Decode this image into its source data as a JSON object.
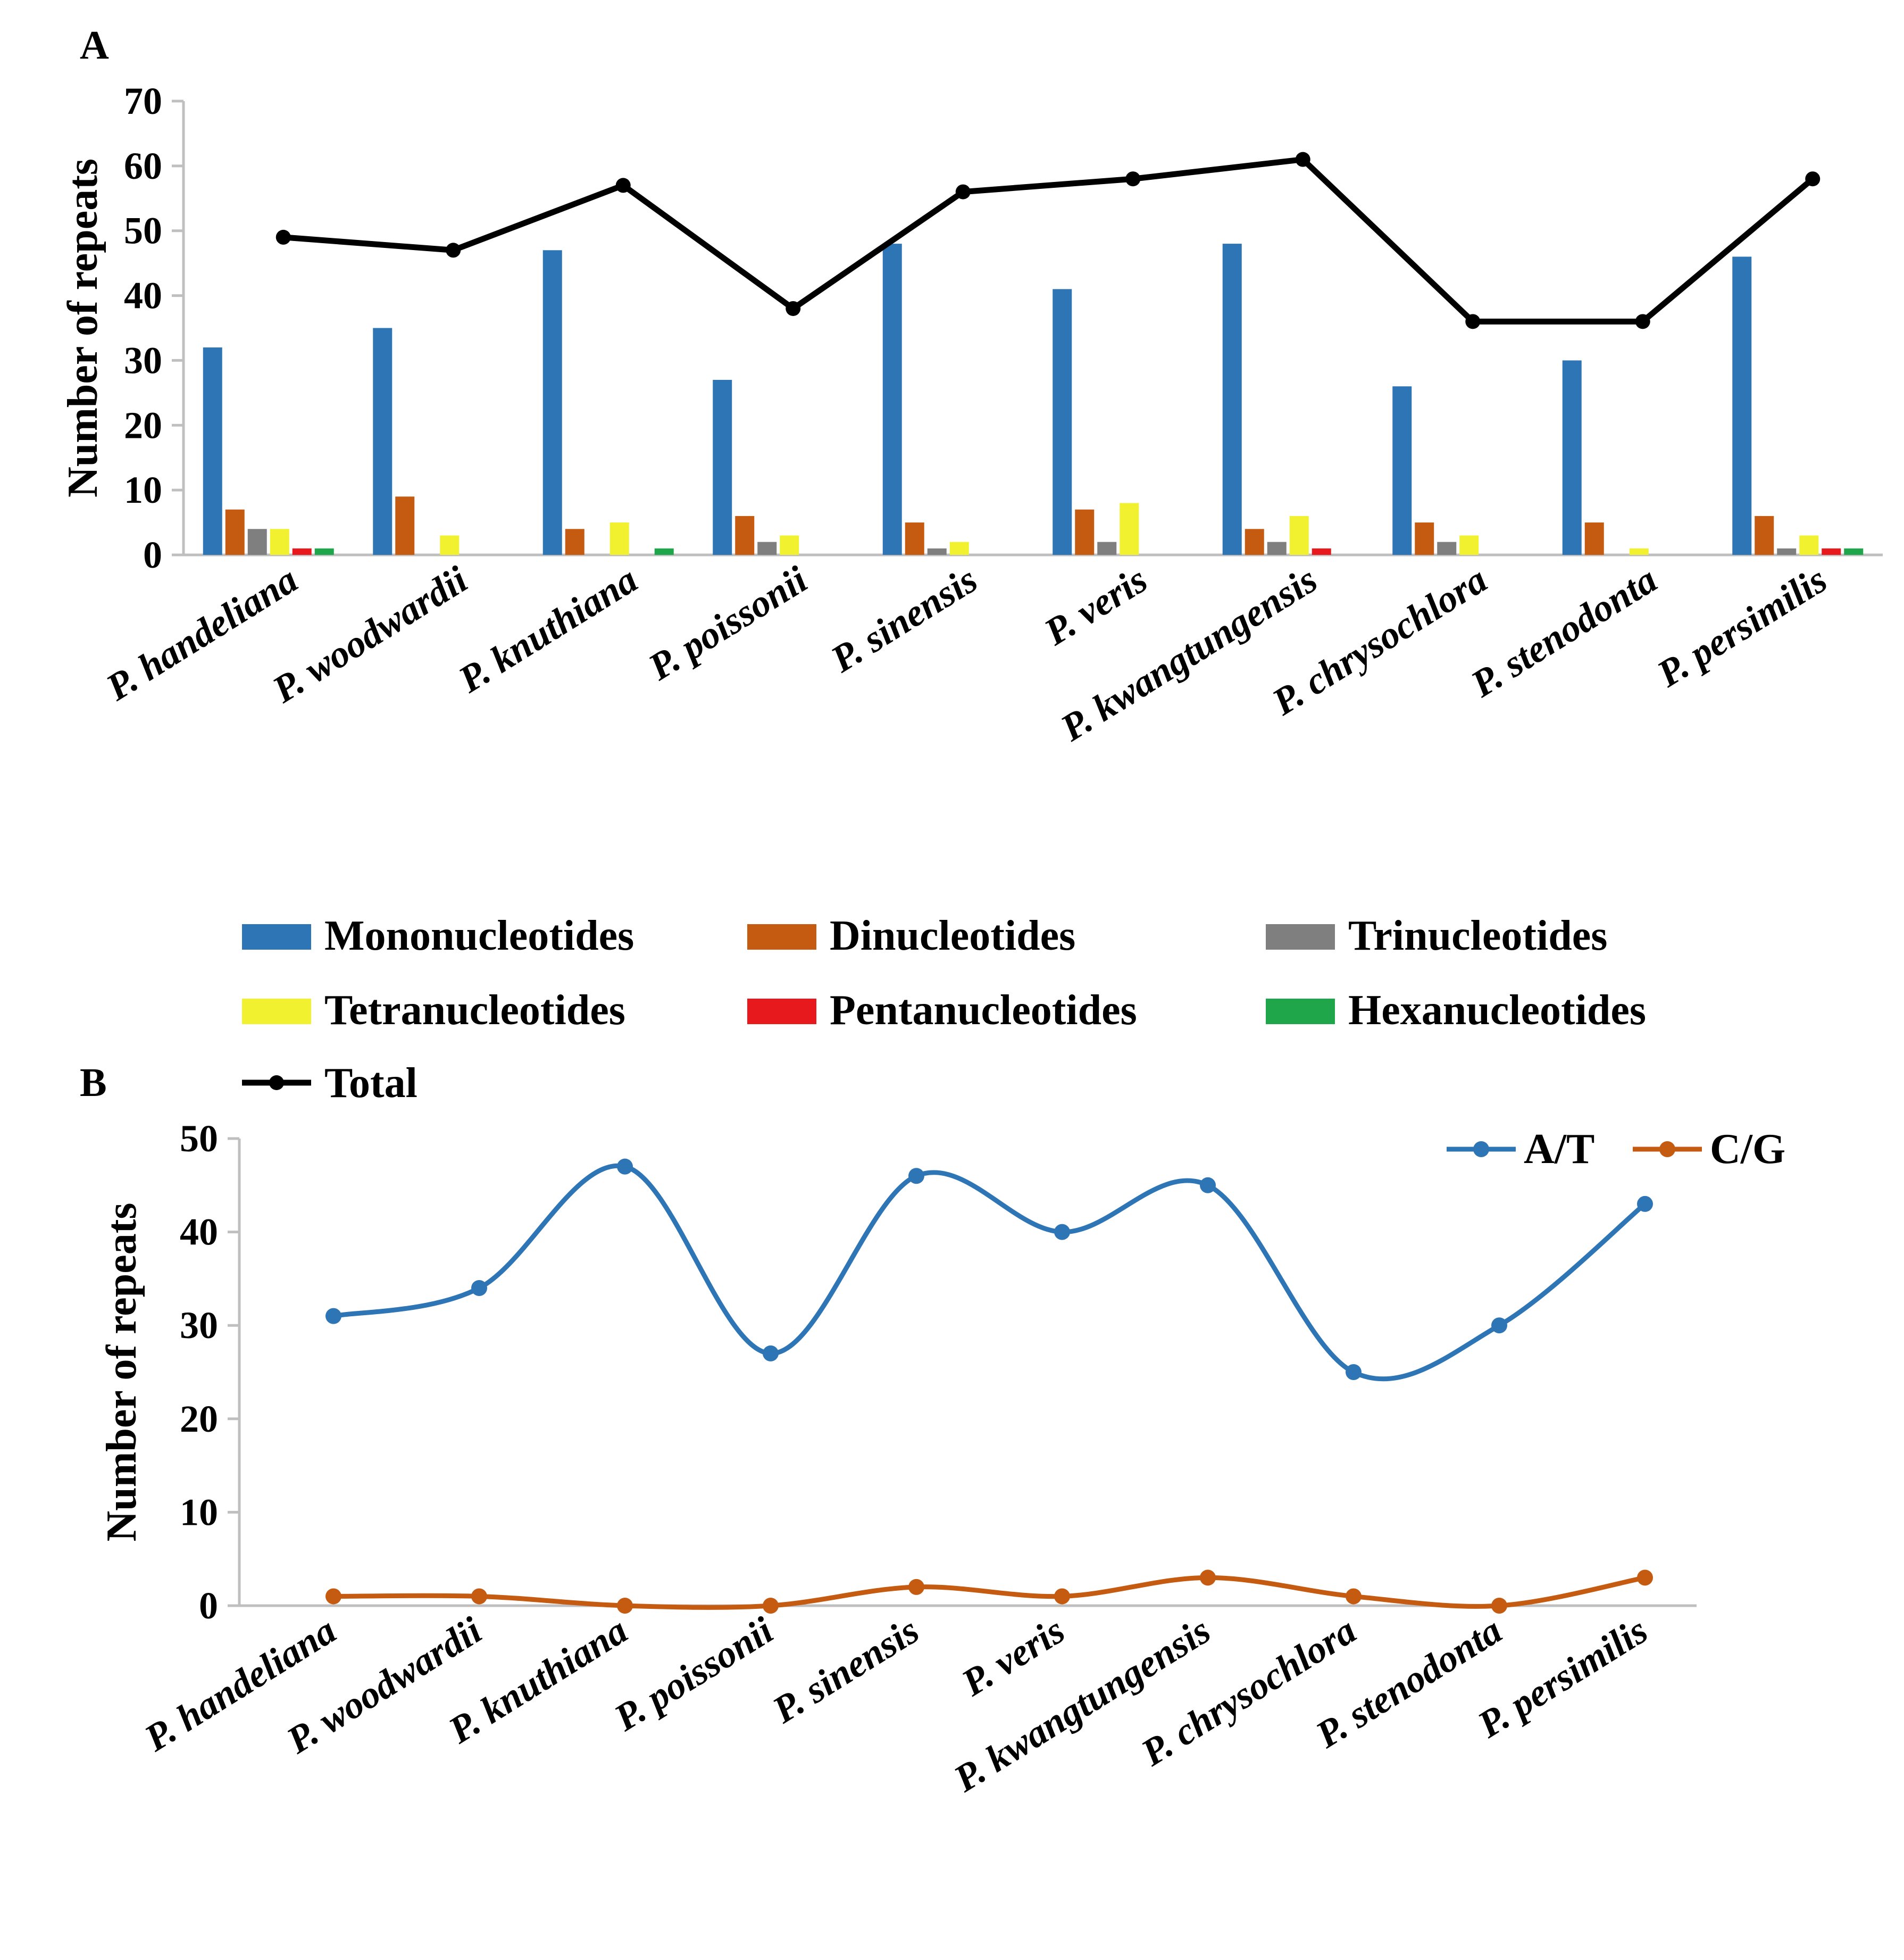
{
  "chart_data": [
    {
      "panel": "A",
      "type": "bar",
      "ylabel": "Number of  repeats",
      "ylim": [
        0,
        70
      ],
      "yticks": [
        0,
        10,
        20,
        30,
        40,
        50,
        60,
        70
      ],
      "categories": [
        "P. handeliana",
        "P. woodwardii",
        "P. knuthiana",
        "P. poissonii",
        "P. sinensis",
        "P. veris",
        "P. kwangtungensis",
        "P. chrysochlora",
        "P. stenodonta",
        "P. persimilis"
      ],
      "series": [
        {
          "name": "Mononucleotides",
          "color": "#2e75b6",
          "values": [
            32,
            35,
            47,
            27,
            48,
            41,
            48,
            26,
            30,
            46
          ]
        },
        {
          "name": "Dinucleotides",
          "color": "#c55a11",
          "values": [
            7,
            9,
            4,
            6,
            5,
            7,
            4,
            5,
            5,
            6
          ]
        },
        {
          "name": "Trinucleotides",
          "color": "#7f7f7f",
          "values": [
            4,
            0,
            0,
            2,
            1,
            2,
            2,
            2,
            0,
            1
          ]
        },
        {
          "name": "Tetranucleotides",
          "color": "#f1f130",
          "values": [
            4,
            3,
            5,
            3,
            2,
            8,
            6,
            3,
            1,
            3
          ]
        },
        {
          "name": "Pentanucleotides",
          "color": "#e8191c",
          "values": [
            1,
            0,
            0,
            0,
            0,
            0,
            1,
            0,
            0,
            1
          ]
        },
        {
          "name": "Hexanucleotides",
          "color": "#1fa64a",
          "values": [
            1,
            0,
            1,
            0,
            0,
            0,
            0,
            0,
            0,
            1
          ]
        }
      ],
      "line_series": {
        "name": "Total",
        "color": "#000000",
        "values": [
          49,
          47,
          57,
          38,
          56,
          58,
          61,
          36,
          36,
          58
        ]
      },
      "legend": "bottom"
    },
    {
      "panel": "B",
      "type": "line",
      "ylabel": "Number of  repeats",
      "ylim": [
        0,
        50
      ],
      "yticks": [
        0,
        10,
        20,
        30,
        40,
        50
      ],
      "categories": [
        "P. handeliana",
        "P. woodwardii",
        "P. knuthiana",
        "P. poissonii",
        "P. sinensis",
        "P. veris",
        "P. kwangtungensis",
        "P. chrysochlora",
        "P. stenodonta",
        "P. persimilis"
      ],
      "series": [
        {
          "name": "A/T",
          "color": "#2e75b6",
          "values": [
            31,
            34,
            47,
            27,
            46,
            40,
            45,
            25,
            30,
            43
          ]
        },
        {
          "name": "C/G",
          "color": "#c55a11",
          "values": [
            1,
            1,
            0,
            0,
            2,
            1,
            3,
            1,
            0,
            3
          ]
        }
      ],
      "smooth": true,
      "legend": "top-right"
    }
  ]
}
